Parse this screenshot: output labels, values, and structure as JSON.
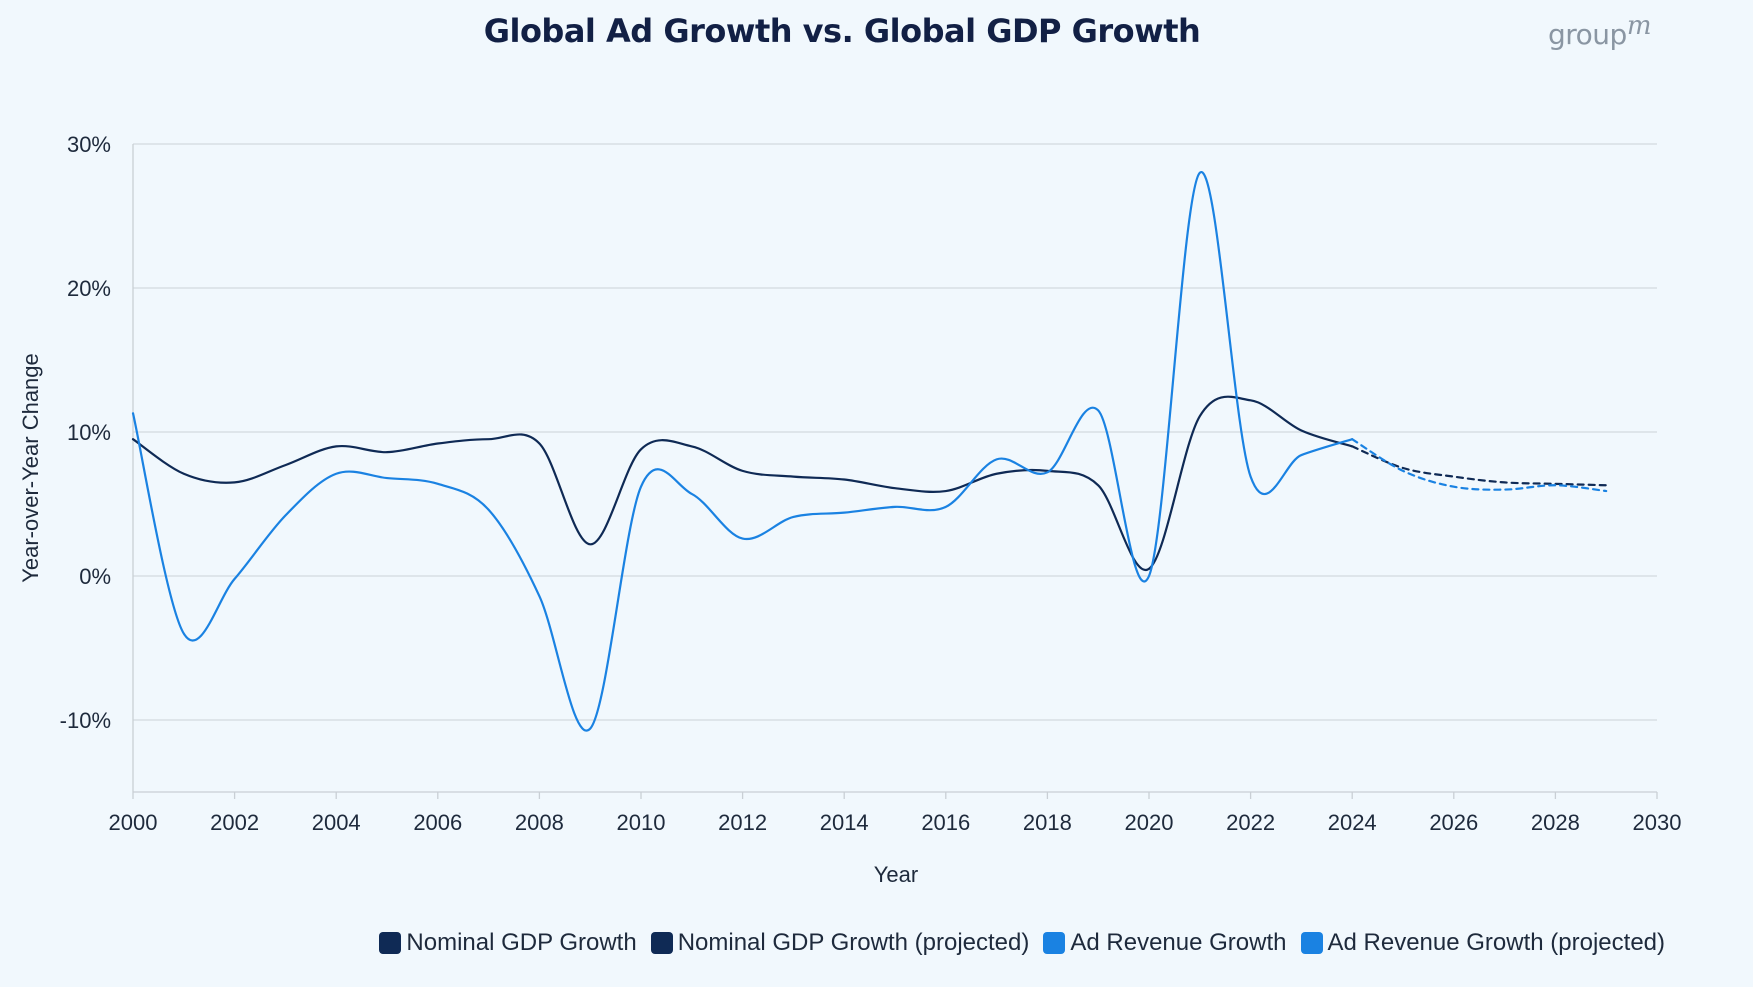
{
  "header": {
    "title": "Global Ad Growth vs. Global GDP Growth",
    "brand": "group",
    "brand_suffix": "m"
  },
  "chart_data": {
    "type": "line",
    "title": "Global Ad Growth vs. Global GDP Growth",
    "xlabel": "Year",
    "ylabel": "Year-over-Year Change",
    "xlim": [
      2000,
      2030
    ],
    "ylim": [
      -15,
      30
    ],
    "x_ticks": [
      2000,
      2002,
      2004,
      2006,
      2008,
      2010,
      2012,
      2014,
      2016,
      2018,
      2020,
      2022,
      2024,
      2026,
      2028,
      2030
    ],
    "x_tick_labels": [
      "2000",
      "2002",
      "2004",
      "2006",
      "2008",
      "2010",
      "2012",
      "2014",
      "2016",
      "2018",
      "2020",
      "2022",
      "2024",
      "2026",
      "2028",
      "2030"
    ],
    "y_ticks": [
      -10,
      0,
      10,
      20,
      30
    ],
    "y_tick_labels": [
      "-10%",
      "0%",
      "10%",
      "20%",
      "30%"
    ],
    "grid": true,
    "legend_position": "bottom-right",
    "series": [
      {
        "name": "Nominal GDP Growth",
        "color": "#0f2a55",
        "style": "solid",
        "x": [
          2000,
          2001,
          2002,
          2003,
          2004,
          2005,
          2006,
          2007,
          2008,
          2009,
          2010,
          2011,
          2012,
          2013,
          2014,
          2015,
          2016,
          2017,
          2018,
          2019,
          2020,
          2021,
          2022,
          2023,
          2024
        ],
        "y": [
          9.5,
          7.1,
          6.5,
          7.7,
          9.0,
          8.6,
          9.2,
          9.5,
          9.2,
          2.2,
          8.8,
          9.0,
          7.3,
          6.9,
          6.7,
          6.1,
          5.9,
          7.1,
          7.3,
          6.3,
          0.5,
          11.1,
          12.2,
          10.1,
          9.0
        ]
      },
      {
        "name": "Nominal GDP Growth (projected)",
        "color": "#0f2a55",
        "style": "dashed",
        "x": [
          2024,
          2025,
          2026,
          2027,
          2028,
          2029
        ],
        "y": [
          9.0,
          7.5,
          6.9,
          6.5,
          6.4,
          6.3
        ]
      },
      {
        "name": "Ad Revenue Growth",
        "color": "#1a82e2",
        "style": "solid",
        "x": [
          2000,
          2001,
          2002,
          2003,
          2004,
          2005,
          2006,
          2007,
          2008,
          2009,
          2010,
          2011,
          2012,
          2013,
          2014,
          2015,
          2016,
          2017,
          2018,
          2019,
          2020,
          2021,
          2022,
          2023,
          2024
        ],
        "y": [
          11.3,
          -4.0,
          -0.2,
          4.2,
          7.1,
          6.8,
          6.4,
          4.6,
          -1.4,
          -10.6,
          6.2,
          5.7,
          2.6,
          4.1,
          4.4,
          4.8,
          4.8,
          8.1,
          7.2,
          11.5,
          0.0,
          28.0,
          6.9,
          8.4,
          9.5
        ]
      },
      {
        "name": "Ad Revenue Growth (projected)",
        "color": "#1a82e2",
        "style": "dashed",
        "x": [
          2024,
          2025,
          2026,
          2027,
          2028,
          2029
        ],
        "y": [
          9.5,
          7.3,
          6.2,
          6.0,
          6.3,
          5.9
        ]
      }
    ]
  },
  "legend": {
    "items": [
      {
        "label": "Nominal GDP Growth",
        "color": "#0f2a55"
      },
      {
        "label": "Nominal GDP Growth (projected)",
        "color": "#0f2a55"
      },
      {
        "label": "Ad Revenue Growth",
        "color": "#1a82e2"
      },
      {
        "label": "Ad Revenue Growth (projected)",
        "color": "#1a82e2"
      }
    ]
  }
}
